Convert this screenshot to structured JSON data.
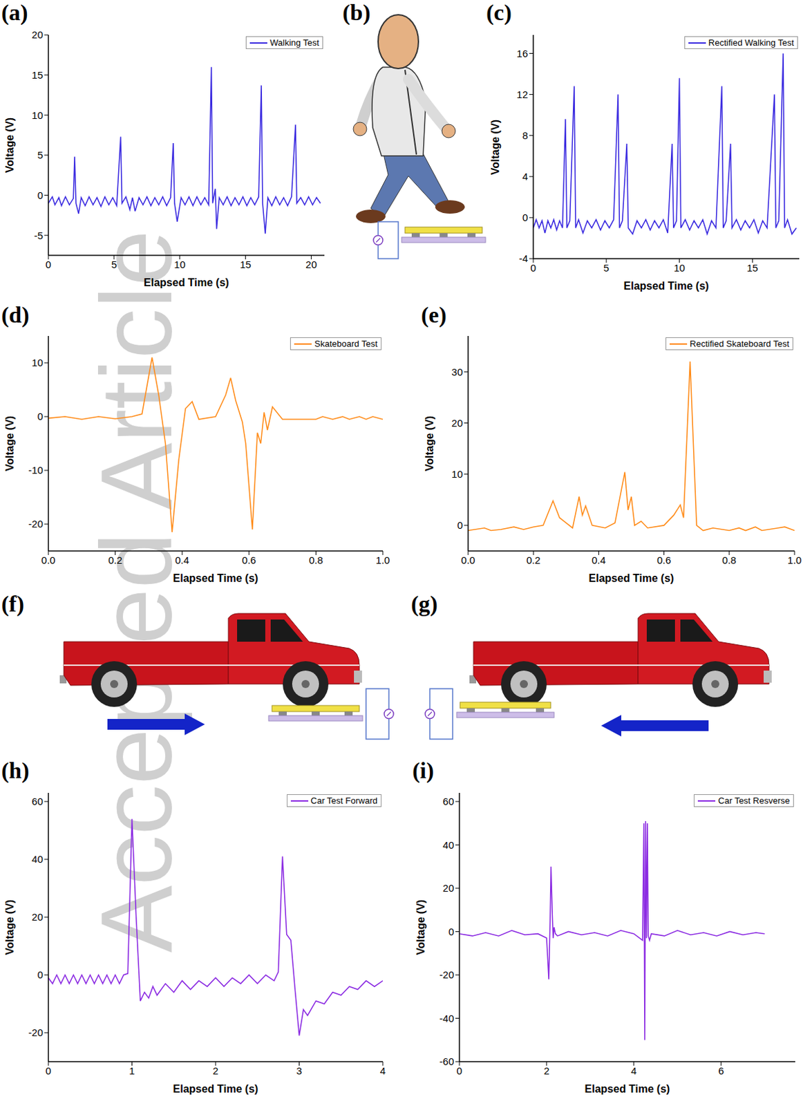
{
  "watermark": "Accepted Article",
  "illustrations": [
    {
      "panel": "(b)"
    },
    {
      "panel": "(f)"
    },
    {
      "panel": "(g)"
    }
  ],
  "chart_data": [
    {
      "panel": "(a)",
      "type": "line",
      "x_label": "Elapsed Time (s)",
      "y_label": "Voltage (V)",
      "xlim": [
        0,
        21
      ],
      "xticks": [
        0,
        5,
        10,
        15,
        20
      ],
      "ylim": [
        -7.5,
        20
      ],
      "yticks": [
        -5,
        0,
        5,
        10,
        15,
        20
      ],
      "legend": "upper right",
      "x": [
        0,
        0.3,
        0.5,
        0.8,
        1.0,
        1.3,
        1.6,
        1.9,
        2.0,
        2.1,
        2.3,
        2.5,
        2.8,
        3.1,
        3.4,
        3.7,
        4.0,
        4.3,
        4.6,
        4.9,
        5.2,
        5.5,
        5.6,
        5.9,
        6.2,
        6.4,
        6.6,
        6.9,
        7.2,
        7.5,
        7.8,
        8.1,
        8.4,
        8.7,
        9.0,
        9.3,
        9.5,
        9.6,
        9.8,
        10.1,
        10.4,
        10.7,
        11.0,
        11.3,
        11.6,
        11.9,
        12.2,
        12.4,
        12.5,
        12.7,
        12.8,
        13.0,
        13.3,
        13.6,
        13.9,
        14.2,
        14.5,
        14.8,
        15.1,
        15.4,
        15.7,
        16.0,
        16.2,
        16.3,
        16.5,
        16.7,
        17.0,
        17.3,
        17.6,
        17.9,
        18.2,
        18.5,
        18.8,
        18.9,
        19.2,
        19.5,
        19.8,
        20.1,
        20.4,
        20.7
      ],
      "series": [
        {
          "name": "Walking Test",
          "color": "#3b2be0",
          "values": [
            -1,
            -0.2,
            -1.2,
            -0.3,
            -1.3,
            -0.2,
            -1.2,
            -0.4,
            4.8,
            -1,
            -2.3,
            -0.3,
            -1.3,
            -0.2,
            -1.2,
            -0.3,
            -1.4,
            -0.2,
            -1.2,
            -0.3,
            -1.3,
            7.3,
            -1,
            -0.2,
            -1.8,
            -0.3,
            -2,
            -0.3,
            -1.2,
            -0.2,
            -1.3,
            -0.3,
            -1.2,
            -0.2,
            -1.3,
            -0.3,
            6.5,
            -1,
            -3.3,
            -0.3,
            -1.2,
            -0.2,
            -1.3,
            -0.2,
            -1.2,
            -0.3,
            -1.2,
            16,
            -1,
            0.8,
            -4.2,
            -0.3,
            -1.2,
            -0.2,
            -1.3,
            -0.3,
            -1.2,
            -0.2,
            -1.3,
            -0.3,
            -1.2,
            -0.2,
            13.7,
            -1,
            -4.8,
            -0.3,
            -1.3,
            -0.2,
            -1.2,
            -0.3,
            -1.3,
            -0.2,
            8.8,
            -1,
            -0.3,
            -1.2,
            -0.2,
            -1.2,
            -0.3,
            -1
          ]
        }
      ]
    },
    {
      "panel": "(c)",
      "type": "line",
      "x_label": "Elapsed Time (s)",
      "y_label": "Voltage (V)",
      "xlim": [
        0,
        18.2
      ],
      "xticks": [
        0,
        5,
        10,
        15
      ],
      "ylim": [
        -4,
        17.8
      ],
      "yticks": [
        -4,
        0,
        4,
        8,
        12,
        16
      ],
      "legend": "upper right",
      "x": [
        0,
        0.2,
        0.4,
        0.6,
        0.8,
        1.0,
        1.2,
        1.4,
        1.6,
        1.8,
        2.0,
        2.2,
        2.3,
        2.5,
        2.8,
        2.9,
        3.1,
        3.4,
        3.7,
        4.0,
        4.3,
        4.6,
        4.9,
        5.2,
        5.5,
        5.8,
        5.9,
        6.1,
        6.4,
        6.5,
        6.8,
        7.1,
        7.4,
        7.7,
        8.0,
        8.3,
        8.6,
        8.9,
        9.2,
        9.5,
        9.6,
        9.8,
        10.0,
        10.1,
        10.4,
        10.7,
        11.0,
        11.3,
        11.6,
        11.9,
        12.2,
        12.5,
        12.9,
        13.0,
        13.2,
        13.5,
        13.6,
        13.9,
        14.2,
        14.5,
        14.8,
        15.1,
        15.4,
        15.7,
        16.0,
        16.5,
        16.6,
        16.8,
        17.1,
        17.2,
        17.4,
        17.7,
        18.0
      ],
      "series": [
        {
          "name": "Rectified Walking Test",
          "color": "#3b2be0",
          "values": [
            -1,
            -0.2,
            -1,
            -0.3,
            -1.5,
            -0.3,
            -1,
            -0.2,
            -1.2,
            -0.3,
            -1,
            9.6,
            -1,
            -0.3,
            12.8,
            -1,
            -0.2,
            -1.5,
            -0.3,
            -1,
            -0.2,
            -1.2,
            -0.3,
            -1,
            -0.2,
            12,
            -1,
            -0.3,
            7.2,
            -1,
            -1.6,
            -0.3,
            -1,
            -0.2,
            -1.2,
            -0.3,
            -1,
            -0.2,
            -1.5,
            7.2,
            -1,
            -0.3,
            13.6,
            -1,
            -0.2,
            -1.2,
            -0.3,
            -1,
            -0.2,
            -1.6,
            -0.3,
            -1,
            12.8,
            -1,
            -0.3,
            7.2,
            -1,
            -0.2,
            -1.2,
            -0.3,
            -1,
            -0.2,
            -1.5,
            -0.3,
            -1,
            12,
            -1,
            -0.3,
            16,
            -1,
            -0.2,
            -1.6,
            -1
          ]
        }
      ]
    },
    {
      "panel": "(d)",
      "type": "line",
      "x_label": "Elapsed Time (s)",
      "y_label": "Voltage (V)",
      "xlim": [
        0,
        1
      ],
      "xticks": [
        {
          "value": 0,
          "label": "0.0"
        },
        0.2,
        0.4,
        0.6,
        0.8,
        {
          "value": 1,
          "label": "1.0"
        }
      ],
      "ylim": [
        -25,
        15
      ],
      "yticks": [
        -20,
        -10,
        0,
        10
      ],
      "legend": "upper right",
      "x": [
        0,
        0.05,
        0.1,
        0.15,
        0.2,
        0.25,
        0.28,
        0.31,
        0.33,
        0.35,
        0.37,
        0.39,
        0.41,
        0.43,
        0.45,
        0.5,
        0.53,
        0.545,
        0.56,
        0.58,
        0.59,
        0.61,
        0.625,
        0.635,
        0.645,
        0.655,
        0.67,
        0.7,
        0.75,
        0.8,
        0.82,
        0.85,
        0.88,
        0.9,
        0.93,
        0.95,
        0.97,
        1.0
      ],
      "series": [
        {
          "name": "Skateboard Test",
          "color": "#ff8c1a",
          "values": [
            -0.3,
            0,
            -0.5,
            0,
            -0.4,
            0,
            0.5,
            11,
            4,
            -5,
            -21.5,
            -8,
            1.5,
            2.8,
            -0.5,
            0,
            4,
            7.2,
            3,
            -1,
            -5,
            -21,
            -3,
            -5,
            0.8,
            -2.5,
            1.8,
            -0.5,
            -0.5,
            -0.5,
            0,
            -0.5,
            0,
            -0.5,
            0,
            -0.5,
            0,
            -0.5
          ]
        }
      ]
    },
    {
      "panel": "(e)",
      "type": "line",
      "x_label": "Elapsed Time (s)",
      "y_label": "Voltage (V)",
      "xlim": [
        0,
        1
      ],
      "xticks": [
        {
          "value": 0,
          "label": "0.0"
        },
        0.2,
        0.4,
        0.6,
        0.8,
        {
          "value": 1,
          "label": "1.0"
        }
      ],
      "ylim": [
        -5,
        37
      ],
      "yticks": [
        0,
        10,
        20,
        30
      ],
      "legend": "upper right",
      "x": [
        0,
        0.05,
        0.07,
        0.1,
        0.14,
        0.17,
        0.2,
        0.23,
        0.26,
        0.28,
        0.3,
        0.32,
        0.34,
        0.35,
        0.36,
        0.38,
        0.42,
        0.45,
        0.48,
        0.49,
        0.5,
        0.51,
        0.53,
        0.55,
        0.6,
        0.63,
        0.65,
        0.66,
        0.68,
        0.7,
        0.72,
        0.75,
        0.8,
        0.83,
        0.85,
        0.88,
        0.9,
        0.95,
        0.97,
        1.0
      ],
      "series": [
        {
          "name": "Rectified Skateboard Test",
          "color": "#ff8c1a",
          "values": [
            -1,
            -0.5,
            -1,
            -0.8,
            -0.3,
            -0.8,
            -0.3,
            0,
            4.8,
            1.5,
            0.5,
            -0.5,
            5.6,
            2,
            3.8,
            0,
            -0.5,
            0.5,
            10.4,
            3,
            5.6,
            0,
            0.8,
            -0.5,
            0,
            2,
            4,
            1.5,
            32,
            0,
            -1,
            -0.5,
            -1,
            -0.5,
            -1,
            -0.3,
            -1,
            -0.5,
            -0.3,
            -1
          ]
        }
      ]
    },
    {
      "panel": "(h)",
      "type": "line",
      "x_label": "Elapsed Time (s)",
      "y_label": "Voltage (V)",
      "xlim": [
        0,
        4
      ],
      "xticks": [
        0,
        1,
        2,
        3,
        4
      ],
      "ylim": [
        -30,
        63
      ],
      "yticks": [
        -20,
        0,
        20,
        40,
        60
      ],
      "legend": "upper right",
      "x": [
        0,
        0.05,
        0.1,
        0.15,
        0.2,
        0.25,
        0.3,
        0.35,
        0.4,
        0.45,
        0.5,
        0.55,
        0.6,
        0.65,
        0.7,
        0.75,
        0.8,
        0.85,
        0.9,
        0.95,
        1.0,
        1.05,
        1.1,
        1.15,
        1.2,
        1.25,
        1.3,
        1.4,
        1.5,
        1.6,
        1.7,
        1.8,
        1.9,
        2.0,
        2.1,
        2.2,
        2.3,
        2.4,
        2.5,
        2.6,
        2.7,
        2.75,
        2.8,
        2.85,
        2.9,
        2.95,
        3.0,
        3.05,
        3.1,
        3.2,
        3.3,
        3.4,
        3.5,
        3.6,
        3.7,
        3.8,
        3.9,
        4.0
      ],
      "series": [
        {
          "name": "Car Test Forward",
          "color": "#8b2be2",
          "values": [
            -1,
            -3,
            0,
            -3,
            0,
            -3,
            0,
            -3,
            0,
            -3,
            0,
            -3,
            0,
            -3,
            0,
            -3,
            0,
            -3,
            0,
            0.5,
            54,
            20,
            -9,
            -6,
            -8,
            -4,
            -7,
            -3,
            -6,
            -2,
            -5,
            -2,
            -4,
            -1,
            -4,
            -1,
            -3,
            0,
            -3,
            0,
            -2,
            1,
            41,
            14,
            12,
            -5,
            -21,
            -12,
            -14,
            -9,
            -10,
            -6,
            -7,
            -4,
            -5,
            -2,
            -4,
            -2
          ]
        }
      ]
    },
    {
      "panel": "(i)",
      "type": "line",
      "x_label": "Elapsed Time (s)",
      "y_label": "Voltage (V)",
      "xlim": [
        0,
        7.7
      ],
      "xticks": [
        0,
        2,
        4,
        6
      ],
      "ylim": [
        -60,
        64
      ],
      "yticks": [
        -60,
        -40,
        -20,
        0,
        20,
        40,
        60
      ],
      "legend": "upper right",
      "x": [
        0,
        0.3,
        0.6,
        0.9,
        1.2,
        1.5,
        1.8,
        2.0,
        2.05,
        2.08,
        2.1,
        2.13,
        2.15,
        2.17,
        2.2,
        2.25,
        2.5,
        2.8,
        3.1,
        3.4,
        3.7,
        4.0,
        4.2,
        4.23,
        4.25,
        4.27,
        4.29,
        4.31,
        4.33,
        4.36,
        4.4,
        4.7,
        5.0,
        5.3,
        5.6,
        5.9,
        6.2,
        6.5,
        6.8,
        7.0
      ],
      "series": [
        {
          "name": "Car Test Resverse",
          "color": "#8b2be2",
          "values": [
            -1,
            -2,
            -0.5,
            -2,
            0.5,
            -1.5,
            -1,
            -3,
            -22,
            5,
            30,
            8,
            -3,
            2,
            -1,
            -2,
            0,
            -1.5,
            -0.5,
            -2,
            0.5,
            -1,
            -4,
            50,
            -50,
            51,
            -3,
            50,
            -2,
            -4,
            -1,
            -2,
            0.5,
            -1.5,
            -0.5,
            -2,
            0,
            -1.5,
            -0.5,
            -1
          ]
        }
      ]
    }
  ]
}
